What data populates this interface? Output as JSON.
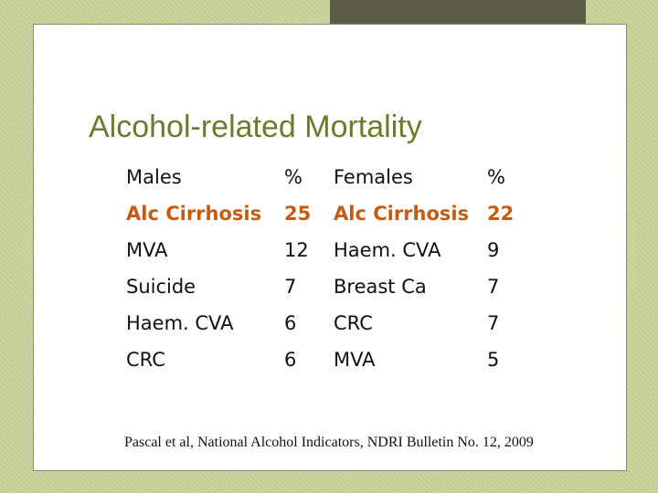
{
  "slide": {
    "title": "Alcohol-related Mortality",
    "citation": "Pascal et al, National Alcohol Indicators, NDRI Bulletin No. 12, 2009"
  },
  "table": {
    "headers": [
      "Males",
      "%",
      "Females",
      "%"
    ],
    "rows": [
      [
        "Alc Cirrhosis",
        "25",
        "Alc Cirrhosis",
        "22"
      ],
      [
        "MVA",
        "12",
        "Haem. CVA",
        "9"
      ],
      [
        "Suicide",
        "7",
        "Breast Ca",
        "7"
      ],
      [
        "Haem. CVA",
        "6",
        "CRC",
        "7"
      ],
      [
        "CRC",
        "6",
        "MVA",
        "5"
      ]
    ]
  },
  "colors": {
    "title": "#6b7a2c",
    "highlight_row": "#c55a11",
    "background": "#c9d39a",
    "top_bar": "#5b5b47"
  }
}
